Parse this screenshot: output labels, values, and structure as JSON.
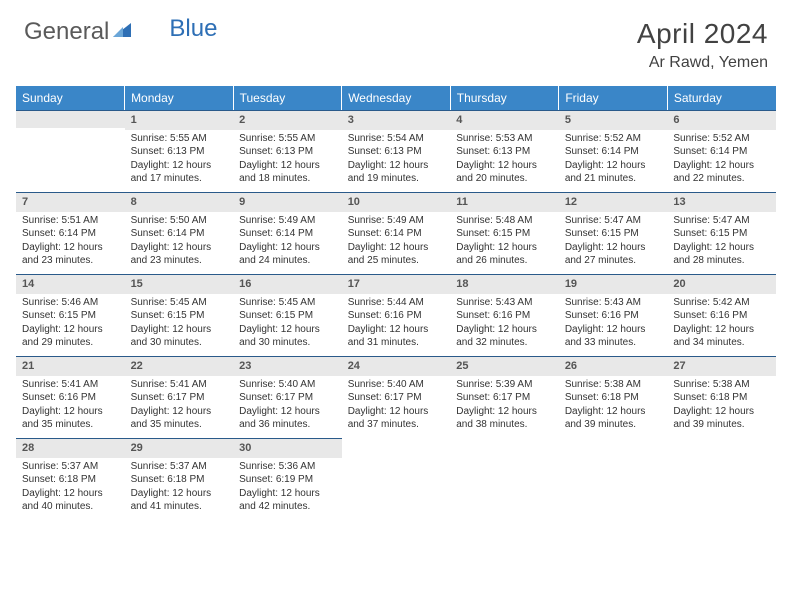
{
  "logo": {
    "part1": "General",
    "part2": "Blue"
  },
  "title": "April 2024",
  "location": "Ar Rawd, Yemen",
  "colors": {
    "header_bg": "#3a86c8",
    "header_text": "#ffffff",
    "daybar_bg": "#e8e8e8",
    "daybar_border": "#2a5a8a",
    "logo_gray": "#5a5a5a",
    "logo_blue": "#2e6fb5",
    "page_bg": "#ffffff",
    "text": "#333333"
  },
  "typography": {
    "title_fontsize": 28,
    "location_fontsize": 16,
    "dayheader_fontsize": 12,
    "cell_fontsize": 10,
    "daynum_fontsize": 11
  },
  "day_names": [
    "Sunday",
    "Monday",
    "Tuesday",
    "Wednesday",
    "Thursday",
    "Friday",
    "Saturday"
  ],
  "weeks": [
    [
      null,
      {
        "d": "1",
        "sr": "Sunrise: 5:55 AM",
        "ss": "Sunset: 6:13 PM",
        "dl1": "Daylight: 12 hours",
        "dl2": "and 17 minutes."
      },
      {
        "d": "2",
        "sr": "Sunrise: 5:55 AM",
        "ss": "Sunset: 6:13 PM",
        "dl1": "Daylight: 12 hours",
        "dl2": "and 18 minutes."
      },
      {
        "d": "3",
        "sr": "Sunrise: 5:54 AM",
        "ss": "Sunset: 6:13 PM",
        "dl1": "Daylight: 12 hours",
        "dl2": "and 19 minutes."
      },
      {
        "d": "4",
        "sr": "Sunrise: 5:53 AM",
        "ss": "Sunset: 6:13 PM",
        "dl1": "Daylight: 12 hours",
        "dl2": "and 20 minutes."
      },
      {
        "d": "5",
        "sr": "Sunrise: 5:52 AM",
        "ss": "Sunset: 6:14 PM",
        "dl1": "Daylight: 12 hours",
        "dl2": "and 21 minutes."
      },
      {
        "d": "6",
        "sr": "Sunrise: 5:52 AM",
        "ss": "Sunset: 6:14 PM",
        "dl1": "Daylight: 12 hours",
        "dl2": "and 22 minutes."
      }
    ],
    [
      {
        "d": "7",
        "sr": "Sunrise: 5:51 AM",
        "ss": "Sunset: 6:14 PM",
        "dl1": "Daylight: 12 hours",
        "dl2": "and 23 minutes."
      },
      {
        "d": "8",
        "sr": "Sunrise: 5:50 AM",
        "ss": "Sunset: 6:14 PM",
        "dl1": "Daylight: 12 hours",
        "dl2": "and 23 minutes."
      },
      {
        "d": "9",
        "sr": "Sunrise: 5:49 AM",
        "ss": "Sunset: 6:14 PM",
        "dl1": "Daylight: 12 hours",
        "dl2": "and 24 minutes."
      },
      {
        "d": "10",
        "sr": "Sunrise: 5:49 AM",
        "ss": "Sunset: 6:14 PM",
        "dl1": "Daylight: 12 hours",
        "dl2": "and 25 minutes."
      },
      {
        "d": "11",
        "sr": "Sunrise: 5:48 AM",
        "ss": "Sunset: 6:15 PM",
        "dl1": "Daylight: 12 hours",
        "dl2": "and 26 minutes."
      },
      {
        "d": "12",
        "sr": "Sunrise: 5:47 AM",
        "ss": "Sunset: 6:15 PM",
        "dl1": "Daylight: 12 hours",
        "dl2": "and 27 minutes."
      },
      {
        "d": "13",
        "sr": "Sunrise: 5:47 AM",
        "ss": "Sunset: 6:15 PM",
        "dl1": "Daylight: 12 hours",
        "dl2": "and 28 minutes."
      }
    ],
    [
      {
        "d": "14",
        "sr": "Sunrise: 5:46 AM",
        "ss": "Sunset: 6:15 PM",
        "dl1": "Daylight: 12 hours",
        "dl2": "and 29 minutes."
      },
      {
        "d": "15",
        "sr": "Sunrise: 5:45 AM",
        "ss": "Sunset: 6:15 PM",
        "dl1": "Daylight: 12 hours",
        "dl2": "and 30 minutes."
      },
      {
        "d": "16",
        "sr": "Sunrise: 5:45 AM",
        "ss": "Sunset: 6:15 PM",
        "dl1": "Daylight: 12 hours",
        "dl2": "and 30 minutes."
      },
      {
        "d": "17",
        "sr": "Sunrise: 5:44 AM",
        "ss": "Sunset: 6:16 PM",
        "dl1": "Daylight: 12 hours",
        "dl2": "and 31 minutes."
      },
      {
        "d": "18",
        "sr": "Sunrise: 5:43 AM",
        "ss": "Sunset: 6:16 PM",
        "dl1": "Daylight: 12 hours",
        "dl2": "and 32 minutes."
      },
      {
        "d": "19",
        "sr": "Sunrise: 5:43 AM",
        "ss": "Sunset: 6:16 PM",
        "dl1": "Daylight: 12 hours",
        "dl2": "and 33 minutes."
      },
      {
        "d": "20",
        "sr": "Sunrise: 5:42 AM",
        "ss": "Sunset: 6:16 PM",
        "dl1": "Daylight: 12 hours",
        "dl2": "and 34 minutes."
      }
    ],
    [
      {
        "d": "21",
        "sr": "Sunrise: 5:41 AM",
        "ss": "Sunset: 6:16 PM",
        "dl1": "Daylight: 12 hours",
        "dl2": "and 35 minutes."
      },
      {
        "d": "22",
        "sr": "Sunrise: 5:41 AM",
        "ss": "Sunset: 6:17 PM",
        "dl1": "Daylight: 12 hours",
        "dl2": "and 35 minutes."
      },
      {
        "d": "23",
        "sr": "Sunrise: 5:40 AM",
        "ss": "Sunset: 6:17 PM",
        "dl1": "Daylight: 12 hours",
        "dl2": "and 36 minutes."
      },
      {
        "d": "24",
        "sr": "Sunrise: 5:40 AM",
        "ss": "Sunset: 6:17 PM",
        "dl1": "Daylight: 12 hours",
        "dl2": "and 37 minutes."
      },
      {
        "d": "25",
        "sr": "Sunrise: 5:39 AM",
        "ss": "Sunset: 6:17 PM",
        "dl1": "Daylight: 12 hours",
        "dl2": "and 38 minutes."
      },
      {
        "d": "26",
        "sr": "Sunrise: 5:38 AM",
        "ss": "Sunset: 6:18 PM",
        "dl1": "Daylight: 12 hours",
        "dl2": "and 39 minutes."
      },
      {
        "d": "27",
        "sr": "Sunrise: 5:38 AM",
        "ss": "Sunset: 6:18 PM",
        "dl1": "Daylight: 12 hours",
        "dl2": "and 39 minutes."
      }
    ],
    [
      {
        "d": "28",
        "sr": "Sunrise: 5:37 AM",
        "ss": "Sunset: 6:18 PM",
        "dl1": "Daylight: 12 hours",
        "dl2": "and 40 minutes."
      },
      {
        "d": "29",
        "sr": "Sunrise: 5:37 AM",
        "ss": "Sunset: 6:18 PM",
        "dl1": "Daylight: 12 hours",
        "dl2": "and 41 minutes."
      },
      {
        "d": "30",
        "sr": "Sunrise: 5:36 AM",
        "ss": "Sunset: 6:19 PM",
        "dl1": "Daylight: 12 hours",
        "dl2": "and 42 minutes."
      },
      null,
      null,
      null,
      null
    ]
  ]
}
